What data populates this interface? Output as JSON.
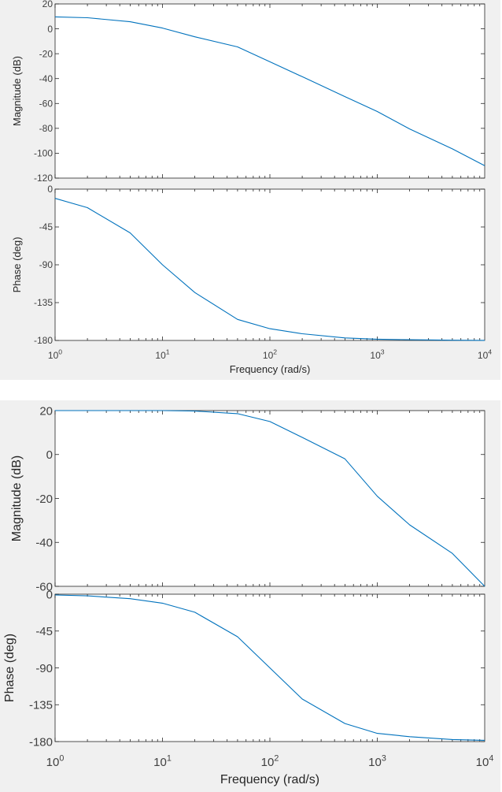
{
  "figures": [
    {
      "xlabel": "Frequency  (rad/s)",
      "x_tick_labels": [
        {
          "base": "10",
          "exp": "0"
        },
        {
          "base": "10",
          "exp": "1"
        },
        {
          "base": "10",
          "exp": "2"
        },
        {
          "base": "10",
          "exp": "3"
        },
        {
          "base": "10",
          "exp": "4"
        }
      ]
    },
    {
      "xlabel": "Frequency  (rad/s)",
      "x_tick_labels": [
        {
          "base": "10",
          "exp": "0"
        },
        {
          "base": "10",
          "exp": "1"
        },
        {
          "base": "10",
          "exp": "2"
        },
        {
          "base": "10",
          "exp": "3"
        },
        {
          "base": "10",
          "exp": "4"
        }
      ]
    }
  ],
  "colors": {
    "line": "#0072bd",
    "axes": "#262626",
    "figure_bg": "#f0f0f0",
    "axes_bg": "#ffffff"
  },
  "chart_data": [
    {
      "type": "line",
      "panel": "magnitude",
      "ylabel": "Magnitude (dB)",
      "xscale": "log",
      "xlim": [
        1,
        10000
      ],
      "ylim": [
        -120,
        20
      ],
      "yticks": [
        20,
        0,
        -20,
        -40,
        -60,
        -80,
        -100,
        -120
      ],
      "series": [
        {
          "x": [
            1,
            2,
            5,
            10,
            20,
            50,
            100,
            200,
            500,
            1000,
            2000,
            5000,
            10000
          ],
          "y": [
            9.6,
            8.9,
            5.7,
            0.6,
            -6.4,
            -14.5,
            -26.5,
            -38.5,
            -54.5,
            -66.5,
            -80.5,
            -96.5,
            -110
          ]
        }
      ]
    },
    {
      "type": "line",
      "panel": "phase",
      "ylabel": "Phase (deg)",
      "xscale": "log",
      "xlim": [
        1,
        10000
      ],
      "ylim": [
        -180,
        0
      ],
      "yticks": [
        0,
        -45,
        -90,
        -135,
        -180
      ],
      "series": [
        {
          "x": [
            1,
            2,
            5,
            10,
            20,
            50,
            100,
            200,
            500,
            1000,
            2000,
            5000,
            10000
          ],
          "y": [
            -11,
            -22,
            -52,
            -90,
            -123,
            -155,
            -166,
            -172,
            -177,
            -178.5,
            -179.2,
            -179.7,
            -179.9
          ]
        }
      ]
    },
    {
      "type": "line",
      "panel": "magnitude",
      "ylabel": "Magnitude (dB)",
      "xscale": "log",
      "xlim": [
        1,
        10000
      ],
      "ylim": [
        -60,
        20
      ],
      "yticks": [
        20,
        0,
        -20,
        -40,
        -60
      ],
      "series": [
        {
          "x": [
            1,
            5,
            10,
            20,
            50,
            100,
            200,
            500,
            1000,
            2000,
            5000,
            10000
          ],
          "y": [
            20,
            20,
            20,
            19.8,
            18.6,
            15,
            7.8,
            -2,
            -19,
            -32,
            -45,
            -60
          ]
        }
      ]
    },
    {
      "type": "line",
      "panel": "phase",
      "ylabel": "Phase (deg)",
      "xscale": "log",
      "xlim": [
        1,
        10000
      ],
      "ylim": [
        -180,
        0
      ],
      "yticks": [
        0,
        -45,
        -90,
        -135,
        -180
      ],
      "series": [
        {
          "x": [
            1,
            2,
            5,
            10,
            20,
            50,
            100,
            200,
            500,
            1000,
            2000,
            5000,
            10000
          ],
          "y": [
            -1,
            -2,
            -5.5,
            -11,
            -22,
            -52,
            -90,
            -128,
            -158,
            -170,
            -174,
            -177.5,
            -178.5
          ]
        }
      ]
    }
  ]
}
